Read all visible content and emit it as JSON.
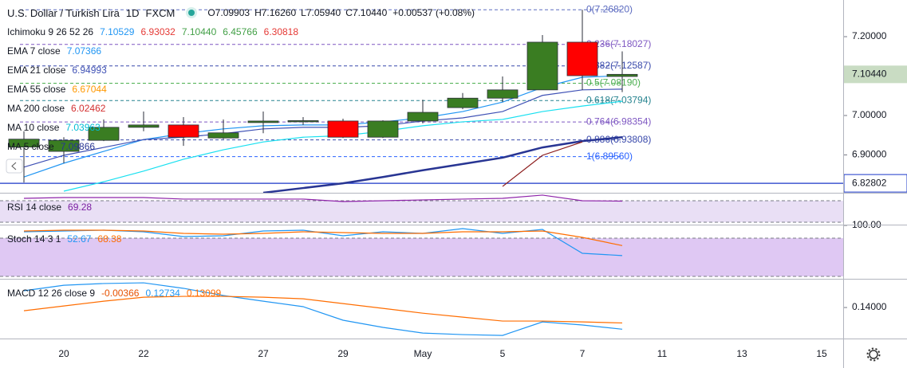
{
  "chart_data": [
    {
      "type": "candlestick",
      "title": "U.S. Dollar / Turkish Lira",
      "interval": "1D",
      "source": "FXCM",
      "ohlc": [
        {
          "k": "O",
          "v": "7.09903"
        },
        {
          "k": "H",
          "v": "7.16260"
        },
        {
          "k": "L",
          "v": "7.05940"
        },
        {
          "k": "C",
          "v": "7.10440"
        }
      ],
      "change": "+0.00537 (+0.08%)",
      "indicators": [
        {
          "label": "Ichimoku 9 26 52 26",
          "values": [
            {
              "text": "7.10529",
              "color": "#2196f3"
            },
            {
              "text": "6.93032",
              "color": "#e53935"
            },
            {
              "text": "7.10440",
              "color": "#43a047"
            },
            {
              "text": "6.45766",
              "color": "#43a047"
            },
            {
              "text": "6.30818",
              "color": "#e53935"
            }
          ]
        },
        {
          "label": "EMA 7 close",
          "values": [
            {
              "text": "7.07366",
              "color": "#2196f3"
            }
          ]
        },
        {
          "label": "EMA 21 close",
          "values": [
            {
              "text": "6.94993",
              "color": "#3f51b5"
            }
          ]
        },
        {
          "label": "EMA 55 close",
          "values": [
            {
              "text": "6.67044",
              "color": "#ff9800"
            }
          ]
        },
        {
          "label": "MA 200 close",
          "values": [
            {
              "text": "6.02462",
              "color": "#d32f2f"
            }
          ]
        },
        {
          "label": "MA 10 close",
          "values": [
            {
              "text": "7.03963",
              "color": "#00bcd4"
            }
          ]
        },
        {
          "label": "MA 5 close",
          "values": [
            {
              "text": "7.09866",
              "color": "#283593"
            }
          ]
        }
      ],
      "categories": [
        null,
        "20",
        null,
        "22",
        null,
        null,
        "27",
        null,
        "29",
        null,
        "May",
        null,
        "5",
        null,
        "7",
        null,
        "11",
        null,
        "13",
        null,
        "15"
      ],
      "open": [
        6.92,
        6.909,
        6.937,
        6.97,
        6.976,
        6.943,
        6.982,
        6.985,
        6.986,
        6.945,
        6.986,
        7.02,
        7.044,
        7.065,
        7.186,
        7.09903,
        null,
        null,
        null,
        null,
        null
      ],
      "high": [
        6.96,
        6.945,
        6.99,
        7.01,
        6.996,
        6.99,
        7.01,
        6.996,
        6.992,
        6.988,
        7.04,
        7.057,
        7.099,
        7.204,
        7.2682,
        7.1626,
        null,
        null,
        null,
        null,
        null
      ],
      "low": [
        6.83,
        6.879,
        6.935,
        6.96,
        6.923,
        6.94,
        6.955,
        6.976,
        6.943,
        6.943,
        6.98,
        7.016,
        7.034,
        7.065,
        7.065,
        7.0594,
        null,
        null,
        null,
        null,
        null
      ],
      "close": [
        6.94,
        6.937,
        6.97,
        6.976,
        6.945,
        6.956,
        6.986,
        6.987,
        6.945,
        6.986,
        7.008,
        7.044,
        7.065,
        7.186,
        7.101,
        7.1044,
        null,
        null,
        null,
        null,
        null
      ],
      "up_color": "#3a7d22",
      "down_color": "#ff0000",
      "lines": [
        {
          "color": "#2196f3",
          "width": 1.2,
          "values": [
            6.844,
            6.879,
            6.909,
            6.939,
            6.954,
            6.966,
            6.974,
            6.976,
            6.976,
            6.984,
            6.994,
            7.01,
            7.034,
            7.071,
            7.097,
            7.101,
            null,
            null,
            null,
            null,
            null
          ]
        },
        {
          "color": "#3f51b5",
          "width": 1.2,
          "values": [
            6.869,
            6.899,
            6.919,
            6.939,
            6.945,
            6.954,
            6.966,
            6.97,
            6.97,
            6.974,
            6.986,
            6.994,
            7.01,
            7.051,
            7.065,
            7.067,
            null,
            null,
            null,
            null,
            null
          ]
        },
        {
          "color": "#18e0f0",
          "width": 1.2,
          "values": [
            null,
            6.808,
            6.832,
            6.859,
            6.889,
            6.913,
            6.933,
            6.945,
            6.949,
            6.96,
            6.974,
            6.984,
            6.99,
            7.01,
            7.024,
            7.036,
            null,
            null,
            null,
            null,
            null
          ]
        },
        {
          "color": "#283593",
          "width": 2.5,
          "values": [
            null,
            null,
            null,
            null,
            null,
            null,
            6.804,
            6.816,
            6.828,
            6.844,
            6.861,
            6.877,
            6.893,
            6.919,
            6.935,
            6.945,
            null,
            null,
            null,
            null,
            null
          ]
        },
        {
          "color": "#8b1a1a",
          "width": 1.2,
          "values": [
            null,
            null,
            null,
            null,
            null,
            null,
            null,
            null,
            null,
            null,
            null,
            null,
            6.82,
            6.899,
            6.933,
            null,
            null,
            null,
            null,
            null,
            null
          ]
        }
      ],
      "fib": [
        {
          "value": 7.2682,
          "label": "0(7.26820)",
          "color": "#5c6bc0"
        },
        {
          "value": 7.18027,
          "label": "0.236(7.18027)",
          "color": "#7e57c2"
        },
        {
          "value": 7.12587,
          "label": "0.382(7.12587)",
          "color": "#3949ab"
        },
        {
          "value": 7.0819,
          "label": "0.5(7.08190)",
          "color": "#4caf50"
        },
        {
          "value": 7.03794,
          "label": "0.618(7.03794)",
          "color": "#26838f"
        },
        {
          "value": 6.98354,
          "label": "0.764(6.98354)",
          "color": "#7e57c2"
        },
        {
          "value": 6.93808,
          "label": "0.886(6.93808)",
          "color": "#3949ab"
        },
        {
          "value": 6.8956,
          "label": "1(6.89560)",
          "color": "#2962ff"
        }
      ],
      "hline": {
        "value": 6.82802,
        "label": "6.82802",
        "color": "#1a37c8"
      },
      "last_price": {
        "value": 7.1044,
        "label": "7.10440",
        "color": "#c9dcc3"
      },
      "ylim": [
        6.804,
        7.293
      ],
      "yticks": [
        {
          "value": 7.2,
          "label": "7.20000"
        },
        {
          "value": 7.0,
          "label": "7.00000"
        },
        {
          "value": 6.9,
          "label": "6.90000"
        }
      ]
    },
    {
      "type": "line",
      "legend": {
        "label": "RSI 14 close",
        "values": [
          {
            "text": "69.28",
            "color": "#7b1fa2"
          }
        ]
      },
      "band": [
        30,
        70
      ],
      "band_color": "#e9dff5",
      "series": [
        {
          "color": "#8e24aa",
          "values": [
            74.4,
            75.9,
            75.9,
            75.9,
            73.0,
            73.0,
            73.0,
            73.0,
            68.5,
            70.0,
            71.5,
            73.0,
            74.4,
            80.4,
            70.0,
            69.28,
            null,
            null,
            null,
            null,
            null
          ]
        }
      ],
      "ylim": [
        25.6,
        83.3
      ],
      "yticks": []
    },
    {
      "type": "line",
      "legend": {
        "label": "Stoch 14 3 1",
        "values": [
          {
            "text": "52.67",
            "color": "#2196f3"
          },
          {
            "text": "68.38",
            "color": "#ff6d00"
          }
        ]
      },
      "band": [
        20,
        80
      ],
      "band_color": "#dfc8f3",
      "series": [
        {
          "color": "#2196f3",
          "values": [
            90,
            91.25,
            92.5,
            90,
            82.5,
            83.75,
            91.25,
            92.5,
            83.75,
            90,
            87.5,
            95,
            87.5,
            93.75,
            56.25,
            52.67,
            null,
            null,
            null,
            null,
            null
          ]
        },
        {
          "color": "#ff6d00",
          "values": [
            91.25,
            92.5,
            92.5,
            91.25,
            87.5,
            86.25,
            87.5,
            90,
            88.75,
            87.5,
            87.5,
            90,
            90,
            91.25,
            81.25,
            68.38,
            null,
            null,
            null,
            null,
            null
          ]
        }
      ],
      "ylim": [
        16.25,
        100
      ],
      "yticks": [
        {
          "value": 100,
          "label": "100.00"
        }
      ]
    },
    {
      "type": "line",
      "legend": {
        "label": "MACD 12 26 close 9",
        "values": [
          {
            "text": "-0.00366",
            "color": "#e65100"
          },
          {
            "text": "0.12734",
            "color": "#2196f3"
          },
          {
            "text": "0.13099",
            "color": "#ff6d00"
          }
        ]
      },
      "series": [
        {
          "color": "#2196f3",
          "values": [
            0.1498,
            0.153,
            0.154,
            0.1544,
            0.1512,
            0.147,
            0.1437,
            0.1405,
            0.1326,
            0.1284,
            0.1251,
            0.1242,
            0.1237,
            0.1316,
            0.1298,
            0.12734,
            null,
            null,
            null,
            null,
            null
          ]
        },
        {
          "color": "#ff6d00",
          "values": [
            0.1381,
            0.1409,
            0.1437,
            0.146,
            0.1465,
            0.1465,
            0.146,
            0.1451,
            0.1423,
            0.1395,
            0.1367,
            0.1344,
            0.1321,
            0.1321,
            0.1316,
            0.13099,
            null,
            null,
            null,
            null,
            null
          ]
        }
      ],
      "ylim": [
        0.1219,
        0.1563
      ],
      "yticks": [
        {
          "value": 0.14,
          "label": "0.14000"
        }
      ]
    }
  ]
}
